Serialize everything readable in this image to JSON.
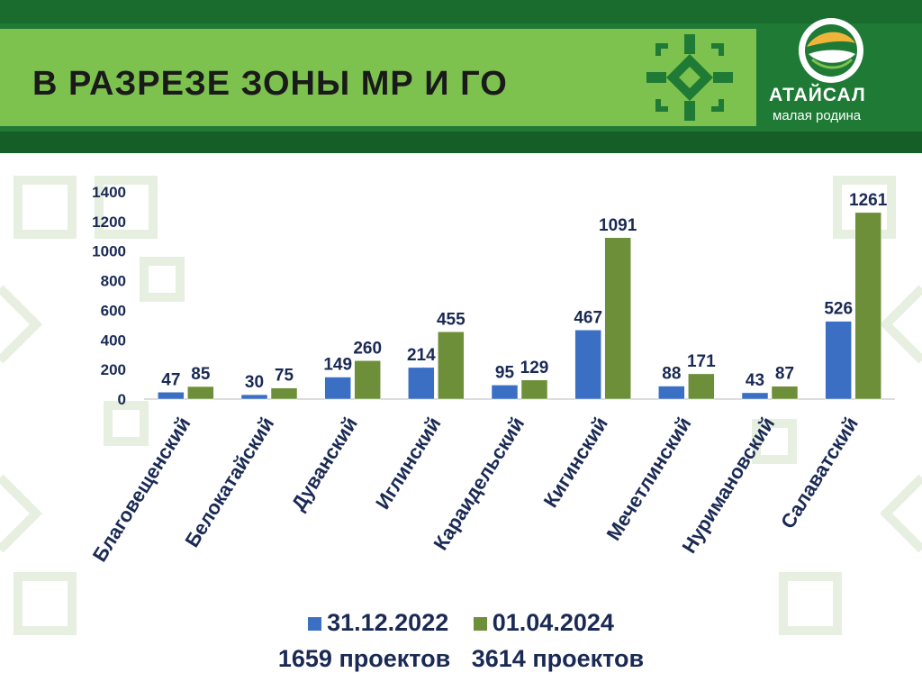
{
  "header": {
    "title": "В РАЗРЕЗЕ ЗОНЫ МР И ГО",
    "logo_name": "АТАЙСАЛ",
    "logo_subtitle": "малая родина"
  },
  "colors": {
    "series1": "#3a6fc4",
    "series2": "#6e8f3a",
    "label": "#1a2a55"
  },
  "chart_data": {
    "type": "bar",
    "categories": [
      "Благовещенский",
      "Белокатайский",
      "Дуванский",
      "Иглинский",
      "Караидельский",
      "Кигинский",
      "Мечетлинский",
      "Нуримановский",
      "Салаватский"
    ],
    "series": [
      {
        "name": "31.12.2022",
        "values": [
          47,
          30,
          149,
          214,
          95,
          467,
          88,
          43,
          526
        ]
      },
      {
        "name": "01.04.2024",
        "values": [
          85,
          75,
          260,
          455,
          129,
          1091,
          171,
          87,
          1261
        ]
      }
    ],
    "yticks": [
      0,
      200,
      400,
      600,
      800,
      1000,
      1200,
      1400
    ],
    "ylim": [
      0,
      1400
    ],
    "legend": [
      "31.12.2022",
      "01.04.2024"
    ],
    "legend_notes": [
      "1659 проектов",
      "3614 проектов"
    ],
    "legend_position": "bottom"
  }
}
